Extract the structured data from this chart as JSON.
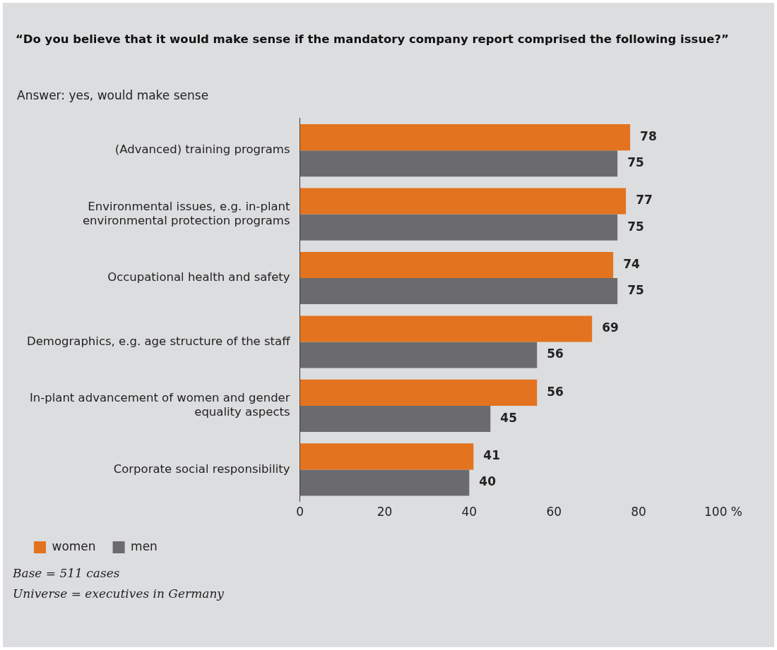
{
  "chart_data": {
    "type": "bar",
    "orientation": "horizontal",
    "title": "“Do you believe that it would make sense if the mandatory company report comprised the following issue?”",
    "subtitle": "Answer: yes, would make sense",
    "categories": [
      "(Advanced) training programs",
      "Environmental issues, e.g. in-plant environmental protection programs",
      "Occupational health and safety",
      "Demographics, e.g. age structure of the staff",
      "In-plant advancement of women and gender equality aspects",
      "Corporate social responsibility"
    ],
    "series": [
      {
        "name": "women",
        "color": "#e3731f",
        "values": [
          78,
          77,
          74,
          69,
          56,
          41
        ]
      },
      {
        "name": "men",
        "color": "#6b6b6e",
        "values": [
          75,
          75,
          75,
          56,
          45,
          40
        ]
      }
    ],
    "xlim": [
      0,
      100
    ],
    "xticks": [
      0,
      20,
      40,
      60,
      80,
      {
        "value": 100,
        "label": "100 %"
      }
    ],
    "data_labels": true,
    "grid": false,
    "legend": "bottom left",
    "annotations": [
      "Base = 511 cases",
      "Universe = executives in Germany"
    ]
  }
}
